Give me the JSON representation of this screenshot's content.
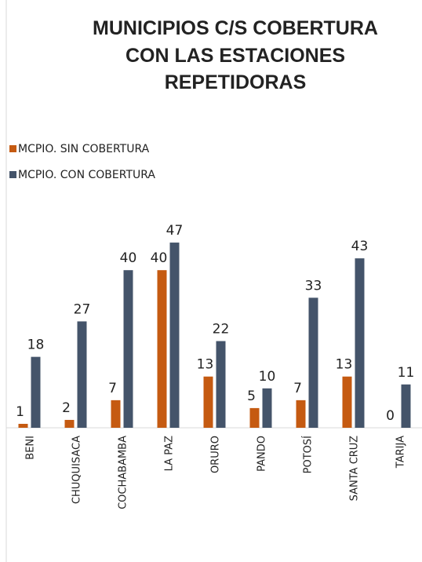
{
  "chart_data": {
    "type": "bar",
    "title_lines": [
      "MUNICIPIOS C/S COBERTURA",
      "CON LAS ESTACIONES",
      "REPETIDORAS"
    ],
    "categories": [
      "BENI",
      "CHUQUISACA",
      "COCHABAMBA",
      "LA PAZ",
      "ORURO",
      "PANDO",
      "POTOSÍ",
      "SANTA CRUZ",
      "TARIJA"
    ],
    "series": [
      {
        "name": "MCPIO. SIN COBERTURA",
        "color": "#c55a11",
        "values": [
          1,
          2,
          7,
          40,
          13,
          5,
          7,
          13,
          0
        ]
      },
      {
        "name": "MCPIO. CON COBERTURA",
        "color": "#44546a",
        "values": [
          18,
          27,
          40,
          47,
          22,
          10,
          33,
          43,
          11
        ]
      }
    ],
    "legend": "top-left"
  }
}
